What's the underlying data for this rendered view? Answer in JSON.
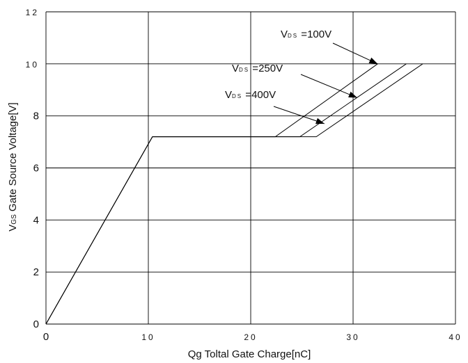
{
  "chart_data": {
    "type": "line",
    "title": "",
    "xlabel": "Qg Toltal Gate Charge[nC]",
    "ylabel": "VGS Gate Source Voltage[V]",
    "xlim": [
      0,
      40
    ],
    "ylim": [
      0,
      12
    ],
    "grid": true,
    "x_ticks": [
      "0",
      "10",
      "20",
      "30",
      "40"
    ],
    "y_ticks": [
      "0",
      "2",
      "4",
      "6",
      "8",
      "10",
      "12"
    ],
    "series": [
      {
        "name": "VDS =100V",
        "points": [
          [
            0,
            0
          ],
          [
            10.4,
            7.2
          ],
          [
            22.4,
            7.2
          ],
          [
            32.4,
            10.0
          ]
        ]
      },
      {
        "name": "VDS =250V",
        "points": [
          [
            0,
            0
          ],
          [
            10.4,
            7.2
          ],
          [
            24.8,
            7.2
          ],
          [
            35.2,
            10.0
          ]
        ]
      },
      {
        "name": "VDS =400V",
        "points": [
          [
            0,
            0
          ],
          [
            10.4,
            7.2
          ],
          [
            26.4,
            7.2
          ],
          [
            36.8,
            10.0
          ]
        ]
      }
    ],
    "annotations": [
      {
        "label": "VDS =100V",
        "target_series": 0,
        "target_point": [
          32.4,
          10.0
        ]
      },
      {
        "label": "VDS =250V",
        "target_series": 1,
        "target_point": [
          30.4,
          8.7
        ]
      },
      {
        "label": "VDS =400V",
        "target_series": 2,
        "target_point": [
          27.2,
          7.7
        ]
      }
    ]
  }
}
